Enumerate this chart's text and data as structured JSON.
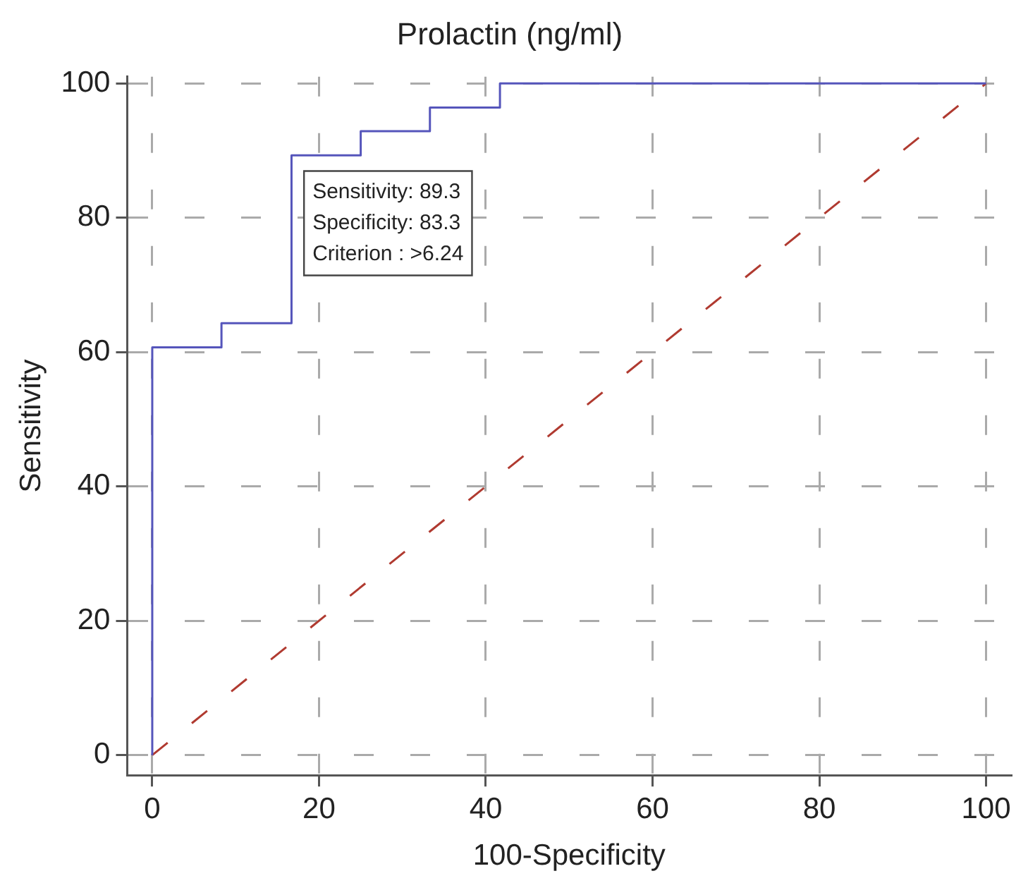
{
  "chart_data": {
    "type": "step",
    "title": "Prolactin (ng/ml)",
    "xlabel": "100-Specificity",
    "ylabel": "Sensitivity",
    "xlim": [
      -3,
      103
    ],
    "ylim": [
      -3,
      101
    ],
    "xticks": [
      0,
      20,
      40,
      60,
      80,
      100
    ],
    "yticks": [
      0,
      20,
      40,
      60,
      80,
      100
    ],
    "grid": true,
    "legend": false,
    "series": [
      {
        "color": "#5555bb",
        "x": [
          0,
          0,
          8.3,
          16.7,
          25,
          33.3,
          41.7,
          100
        ],
        "values": [
          0,
          60.7,
          64.3,
          89.3,
          92.9,
          96.4,
          100,
          100
        ]
      },
      {
        "type": "line",
        "color": "#b03a30",
        "line_style": "dashed",
        "x": [
          0,
          100
        ],
        "values": [
          0,
          100
        ]
      }
    ],
    "annotations": [
      "Sensitivity: 89.3\nSpecificity: 83.3\nCriterion : >6.24"
    ]
  }
}
